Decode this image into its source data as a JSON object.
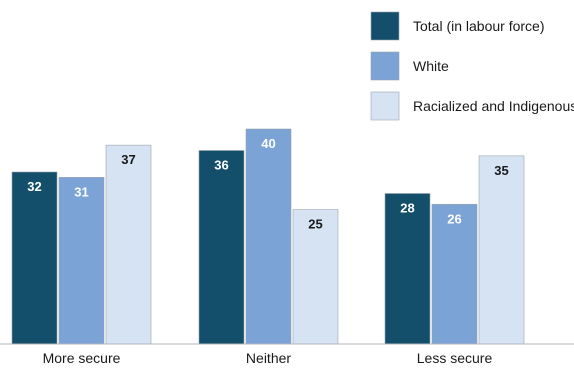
{
  "chart_data": {
    "type": "bar",
    "categories": [
      "More secure",
      "Neither",
      "Less secure"
    ],
    "series": [
      {
        "name": "Total (in labour force)",
        "values": [
          32,
          36,
          28
        ],
        "color": "#134e6b",
        "label_color": "#ffffff"
      },
      {
        "name": "White",
        "values": [
          31,
          40,
          26
        ],
        "color": "#7ba3d6",
        "label_color": "#ffffff"
      },
      {
        "name": "Racialized and Indigenous",
        "values": [
          37,
          25,
          35
        ],
        "color": "#d6e3f3",
        "label_color": "#1a1a1a"
      }
    ],
    "title": "",
    "xlabel": "",
    "ylabel": "",
    "ylim": [
      0,
      40
    ],
    "grid": false,
    "legend_position": "top-right"
  }
}
